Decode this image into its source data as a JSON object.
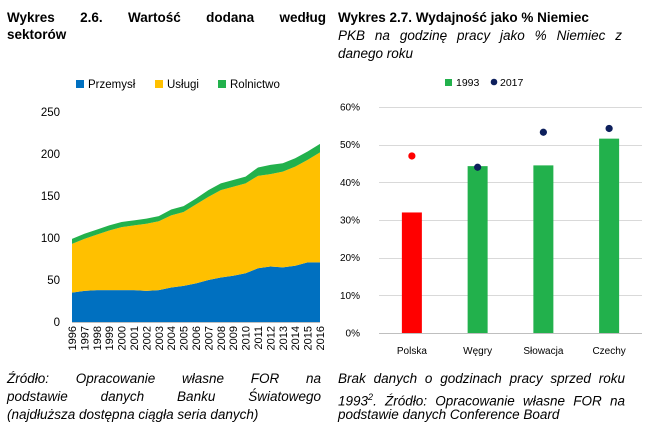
{
  "left": {
    "title_line1": "Wykres 2.6. Wartość dodana według",
    "title_line2": "sektorów",
    "source_line1": "Źródło: Opracowanie własne FOR na",
    "source_line2": "podstawie danych Banku Światowego",
    "source_line3": "(najdłuższa dostępna ciągła seria danych)"
  },
  "right": {
    "title": "Wykres 2.7. Wydajność jako % Niemiec",
    "subtitle_line1": "PKB na godzinę pracy jako % Niemiec z",
    "subtitle_line2": "danego roku",
    "source_line1": "Brak danych o godzinach pracy sprzed roku",
    "source_line2_a": "1993",
    "source_line2_sup": "2",
    "source_line2_b": ". Źródło: Opracowanie własne FOR na",
    "source_line3": "podstawie danych Conference Board"
  },
  "colors": {
    "przemysl": "#0070C0",
    "uslugi": "#FFC000",
    "rolnictwo": "#22B14C",
    "bar_1993": "#22B14C",
    "bar_poland": "#FF0000",
    "dot_2017": "#0D1F5C",
    "dot_poland": "#FF0000"
  },
  "chart_data": [
    {
      "type": "area",
      "stacked": true,
      "x": [
        "1996",
        "1997",
        "1998",
        "1999",
        "2000",
        "2001",
        "2002",
        "2003",
        "2004",
        "2005",
        "2006",
        "2007",
        "2008",
        "2009",
        "2010",
        "2011",
        "2012",
        "2013",
        "2014",
        "2015",
        "2016"
      ],
      "series": [
        {
          "name": "Przemysł",
          "values": [
            35,
            37,
            38,
            38,
            38,
            38,
            37,
            38,
            41,
            43,
            46,
            50,
            53,
            55,
            58,
            64,
            66,
            65,
            67,
            71,
            71
          ]
        },
        {
          "name": "Usługi",
          "values": [
            58,
            62,
            66,
            71,
            75,
            77,
            80,
            82,
            86,
            88,
            94,
            99,
            104,
            106,
            107,
            110,
            110,
            114,
            118,
            122,
            131
          ]
        },
        {
          "name": "Rolnictwo",
          "values": [
            6,
            6,
            6,
            6,
            6,
            6,
            6,
            6,
            7,
            7,
            7,
            8,
            8,
            8,
            8,
            10,
            11,
            10,
            10,
            10,
            10
          ]
        }
      ],
      "ylim": [
        0,
        250
      ],
      "yticks": [
        "0",
        "50",
        "100",
        "150",
        "200",
        "250"
      ],
      "legend_position": "top",
      "grid": false
    },
    {
      "type": "bar",
      "categories": [
        "Polska",
        "Węgry",
        "Słowacja",
        "Czechy"
      ],
      "series": [
        {
          "name": "1993",
          "values": [
            32,
            44.3,
            44.5,
            51.6
          ],
          "kind": "bar"
        },
        {
          "name": "2017",
          "values": [
            47,
            44,
            53.3,
            54.3
          ],
          "kind": "scatter"
        }
      ],
      "ylim": [
        0,
        60
      ],
      "yticks": [
        "0%",
        "10%",
        "20%",
        "30%",
        "40%",
        "50%",
        "60%"
      ],
      "legend_position": "top",
      "grid": true
    }
  ]
}
